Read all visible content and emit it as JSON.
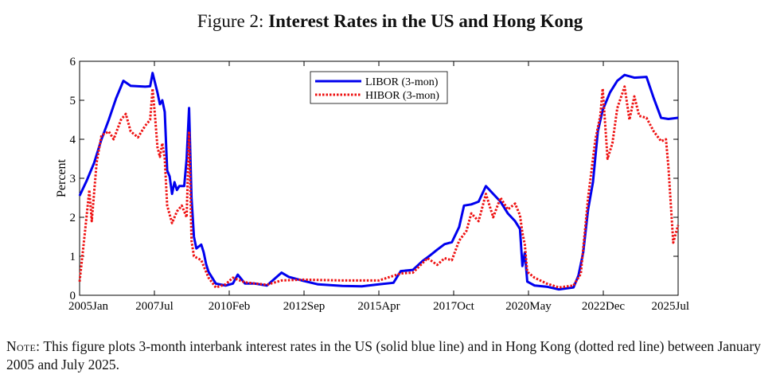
{
  "figure": {
    "prefix": "Figure 2:",
    "title": "Interest Rates in the US and Hong Kong"
  },
  "note": {
    "label": "Note:",
    "text": "This figure plots 3-month interbank interest rates in the US (solid blue line) and in Hong Kong (dotted red line) between January 2005 and July 2025."
  },
  "colors": {
    "libor": "#0000ee",
    "hibor": "#ee1111"
  },
  "chart_data": {
    "type": "line",
    "title": "",
    "xlabel": "",
    "ylabel": "Percent",
    "xlim": [
      "2005-01",
      "2025-07"
    ],
    "ylim": [
      0,
      6
    ],
    "x_ticks": [
      "2005Jan",
      "2007Jul",
      "2010Feb",
      "2012Sep",
      "2015Apr",
      "2017Oct",
      "2020May",
      "2022Dec",
      "2025Jul"
    ],
    "y_ticks": [
      0,
      1,
      2,
      3,
      4,
      5,
      6
    ],
    "grid": false,
    "legend_position": "top-center",
    "series": [
      {
        "name": "LIBOR (3-mon)",
        "style": "solid",
        "points": [
          [
            "2005-01",
            2.55
          ],
          [
            "2005-04",
            2.95
          ],
          [
            "2005-07",
            3.4
          ],
          [
            "2005-10",
            4.0
          ],
          [
            "2006-01",
            4.5
          ],
          [
            "2006-04",
            5.05
          ],
          [
            "2006-07",
            5.5
          ],
          [
            "2006-10",
            5.37
          ],
          [
            "2007-01",
            5.36
          ],
          [
            "2007-04",
            5.35
          ],
          [
            "2007-06",
            5.36
          ],
          [
            "2007-07",
            5.7
          ],
          [
            "2007-08",
            5.45
          ],
          [
            "2007-09",
            5.2
          ],
          [
            "2007-10",
            4.9
          ],
          [
            "2007-11",
            5.0
          ],
          [
            "2007-12",
            4.7
          ],
          [
            "2008-01",
            3.2
          ],
          [
            "2008-02",
            3.05
          ],
          [
            "2008-03",
            2.6
          ],
          [
            "2008-04",
            2.9
          ],
          [
            "2008-05",
            2.7
          ],
          [
            "2008-06",
            2.8
          ],
          [
            "2008-08",
            2.8
          ],
          [
            "2008-09",
            3.5
          ],
          [
            "2008-10",
            4.8
          ],
          [
            "2008-11",
            2.5
          ],
          [
            "2008-12",
            1.5
          ],
          [
            "2009-01",
            1.2
          ],
          [
            "2009-02",
            1.25
          ],
          [
            "2009-03",
            1.3
          ],
          [
            "2009-04",
            1.1
          ],
          [
            "2009-05",
            0.8
          ],
          [
            "2009-06",
            0.6
          ],
          [
            "2009-09",
            0.3
          ],
          [
            "2010-01",
            0.25
          ],
          [
            "2010-04",
            0.3
          ],
          [
            "2010-06",
            0.53
          ],
          [
            "2010-09",
            0.3
          ],
          [
            "2011-01",
            0.3
          ],
          [
            "2011-06",
            0.25
          ],
          [
            "2011-12",
            0.58
          ],
          [
            "2012-03",
            0.47
          ],
          [
            "2012-09",
            0.37
          ],
          [
            "2013-03",
            0.28
          ],
          [
            "2014-01",
            0.24
          ],
          [
            "2014-09",
            0.23
          ],
          [
            "2015-04",
            0.28
          ],
          [
            "2015-10",
            0.32
          ],
          [
            "2016-01",
            0.62
          ],
          [
            "2016-06",
            0.65
          ],
          [
            "2016-10",
            0.88
          ],
          [
            "2017-01",
            1.02
          ],
          [
            "2017-04",
            1.17
          ],
          [
            "2017-07",
            1.31
          ],
          [
            "2017-10",
            1.36
          ],
          [
            "2018-01",
            1.75
          ],
          [
            "2018-03",
            2.3
          ],
          [
            "2018-06",
            2.33
          ],
          [
            "2018-09",
            2.4
          ],
          [
            "2018-12",
            2.8
          ],
          [
            "2019-03",
            2.6
          ],
          [
            "2019-06",
            2.4
          ],
          [
            "2019-09",
            2.1
          ],
          [
            "2019-12",
            1.9
          ],
          [
            "2020-02",
            1.7
          ],
          [
            "2020-03",
            0.75
          ],
          [
            "2020-04",
            1.1
          ],
          [
            "2020-05",
            0.35
          ],
          [
            "2020-08",
            0.25
          ],
          [
            "2021-01",
            0.22
          ],
          [
            "2021-06",
            0.15
          ],
          [
            "2021-12",
            0.2
          ],
          [
            "2022-02",
            0.5
          ],
          [
            "2022-04",
            1.1
          ],
          [
            "2022-06",
            2.2
          ],
          [
            "2022-08",
            2.9
          ],
          [
            "2022-10",
            4.2
          ],
          [
            "2022-12",
            4.75
          ],
          [
            "2023-03",
            5.2
          ],
          [
            "2023-06",
            5.5
          ],
          [
            "2023-09",
            5.65
          ],
          [
            "2024-01",
            5.58
          ],
          [
            "2024-06",
            5.6
          ],
          [
            "2024-09",
            5.05
          ],
          [
            "2024-12",
            4.55
          ],
          [
            "2025-03",
            4.52
          ],
          [
            "2025-07",
            4.55
          ]
        ]
      },
      {
        "name": "HIBOR (3-mon)",
        "style": "dotted",
        "points": [
          [
            "2005-01",
            0.35
          ],
          [
            "2005-03",
            1.5
          ],
          [
            "2005-05",
            2.7
          ],
          [
            "2005-06",
            1.9
          ],
          [
            "2005-08",
            3.4
          ],
          [
            "2005-10",
            4.1
          ],
          [
            "2006-01",
            4.2
          ],
          [
            "2006-03",
            4.0
          ],
          [
            "2006-06",
            4.5
          ],
          [
            "2006-08",
            4.65
          ],
          [
            "2006-10",
            4.2
          ],
          [
            "2007-01",
            4.05
          ],
          [
            "2007-04",
            4.35
          ],
          [
            "2007-06",
            4.5
          ],
          [
            "2007-07",
            5.3
          ],
          [
            "2007-08",
            4.6
          ],
          [
            "2007-09",
            3.8
          ],
          [
            "2007-10",
            3.55
          ],
          [
            "2007-11",
            3.9
          ],
          [
            "2007-12",
            3.5
          ],
          [
            "2008-01",
            2.3
          ],
          [
            "2008-03",
            1.85
          ],
          [
            "2008-05",
            2.15
          ],
          [
            "2008-07",
            2.3
          ],
          [
            "2008-09",
            2.0
          ],
          [
            "2008-10",
            4.2
          ],
          [
            "2008-11",
            1.4
          ],
          [
            "2008-12",
            1.0
          ],
          [
            "2009-03",
            0.9
          ],
          [
            "2009-06",
            0.45
          ],
          [
            "2009-09",
            0.2
          ],
          [
            "2010-01",
            0.28
          ],
          [
            "2010-04",
            0.45
          ],
          [
            "2010-09",
            0.33
          ],
          [
            "2011-06",
            0.27
          ],
          [
            "2011-12",
            0.38
          ],
          [
            "2012-09",
            0.4
          ],
          [
            "2014-01",
            0.38
          ],
          [
            "2015-04",
            0.38
          ],
          [
            "2016-01",
            0.56
          ],
          [
            "2016-06",
            0.58
          ],
          [
            "2016-12",
            0.95
          ],
          [
            "2017-04",
            0.78
          ],
          [
            "2017-07",
            0.95
          ],
          [
            "2017-10",
            0.9
          ],
          [
            "2018-01",
            1.4
          ],
          [
            "2018-04",
            1.65
          ],
          [
            "2018-06",
            2.1
          ],
          [
            "2018-09",
            1.9
          ],
          [
            "2018-12",
            2.6
          ],
          [
            "2019-03",
            2.0
          ],
          [
            "2019-06",
            2.5
          ],
          [
            "2019-09",
            2.2
          ],
          [
            "2019-12",
            2.35
          ],
          [
            "2020-02",
            2.05
          ],
          [
            "2020-03",
            1.6
          ],
          [
            "2020-04",
            1.3
          ],
          [
            "2020-05",
            0.6
          ],
          [
            "2020-08",
            0.45
          ],
          [
            "2021-01",
            0.3
          ],
          [
            "2021-06",
            0.2
          ],
          [
            "2021-12",
            0.25
          ],
          [
            "2022-03",
            0.55
          ],
          [
            "2022-06",
            2.5
          ],
          [
            "2022-09",
            4.0
          ],
          [
            "2022-11",
            4.6
          ],
          [
            "2022-12",
            5.3
          ],
          [
            "2023-02",
            3.5
          ],
          [
            "2023-04",
            3.9
          ],
          [
            "2023-06",
            4.8
          ],
          [
            "2023-09",
            5.35
          ],
          [
            "2023-11",
            4.5
          ],
          [
            "2024-01",
            5.1
          ],
          [
            "2024-03",
            4.6
          ],
          [
            "2024-06",
            4.55
          ],
          [
            "2024-09",
            4.2
          ],
          [
            "2024-12",
            3.95
          ],
          [
            "2025-02",
            4.0
          ],
          [
            "2025-03",
            3.3
          ],
          [
            "2025-05",
            1.35
          ],
          [
            "2025-07",
            1.8
          ]
        ]
      }
    ]
  }
}
